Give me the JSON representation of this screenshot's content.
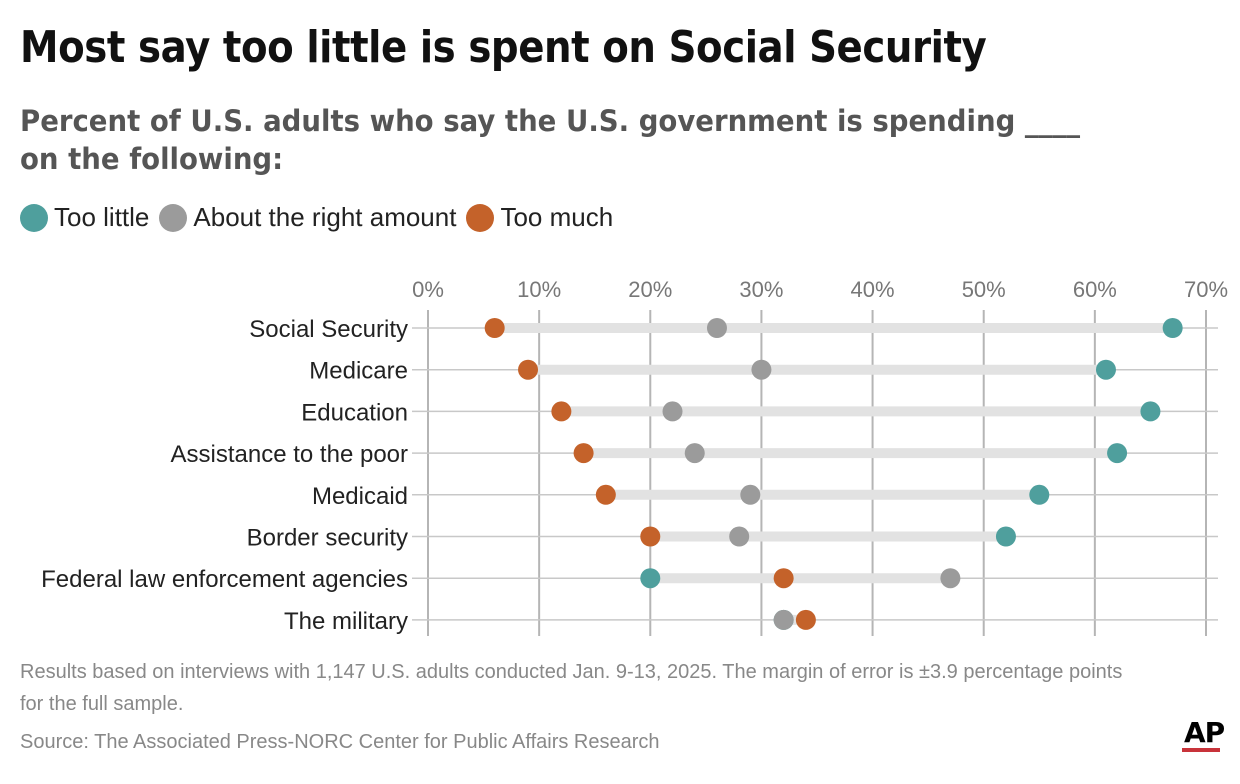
{
  "title": "Most say too little is spent on Social Security",
  "subtitle": "Percent of U.S. adults who say the U.S. government is spending ____ on the following:",
  "note": "Results based on interviews with 1,147 U.S. adults conducted Jan. 9-13, 2025. The margin of error is ±3.9 percentage points for the full sample.",
  "source": "Source: The Associated Press-NORC Center for Public Affairs Research",
  "logo": "AP",
  "chart_data": {
    "type": "dot",
    "categories": [
      "Social Security",
      "Medicare",
      "Education",
      "Assistance to the poor",
      "Medicaid",
      "Border security",
      "Federal law enforcement agencies",
      "The military"
    ],
    "series": [
      {
        "name": "Too little",
        "color": "#4f9f9d",
        "values": [
          67,
          61,
          65,
          62,
          55,
          52,
          20,
          32
        ]
      },
      {
        "name": "About the right amount",
        "color": "#9b9b9b",
        "values": [
          26,
          30,
          22,
          24,
          29,
          28,
          47,
          32
        ]
      },
      {
        "name": "Too much",
        "color": "#c4622a",
        "values": [
          6,
          9,
          12,
          14,
          16,
          20,
          32,
          34
        ]
      }
    ],
    "xlim": [
      0,
      70
    ],
    "xticks": [
      "0%",
      "10%",
      "20%",
      "30%",
      "40%",
      "50%",
      "60%",
      "70%"
    ],
    "grid": true,
    "legend": "top-left"
  }
}
